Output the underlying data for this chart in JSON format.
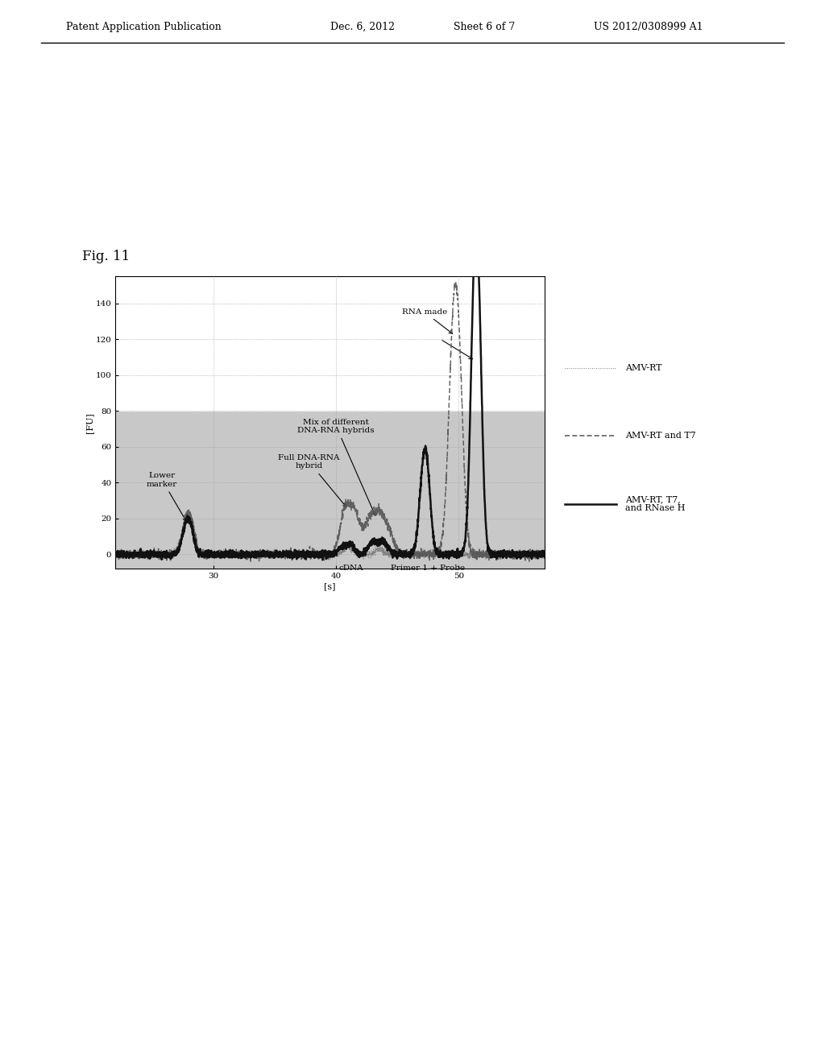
{
  "fig_label": "Fig. 11",
  "ylabel": "[FU]",
  "xlabel": "[s]",
  "xlim": [
    22,
    57
  ],
  "ylim": [
    -8,
    155
  ],
  "yticks": [
    0,
    20,
    40,
    60,
    80,
    100,
    120,
    140
  ],
  "xticks": [
    30,
    40,
    50
  ],
  "grid_color": "#999999",
  "plot_bg_color": "#c8c8c8",
  "white_bg_threshold": 80,
  "legend_entries": [
    "AMV-RT",
    "AMV-RT and T7",
    "AMV-RT, T7,\nand RNase H"
  ],
  "header_left": "Patent Application Publication",
  "header_mid1": "Dec. 6, 2012",
  "header_mid2": "Sheet 6 of 7",
  "header_right": "US 2012/0308999 A1"
}
